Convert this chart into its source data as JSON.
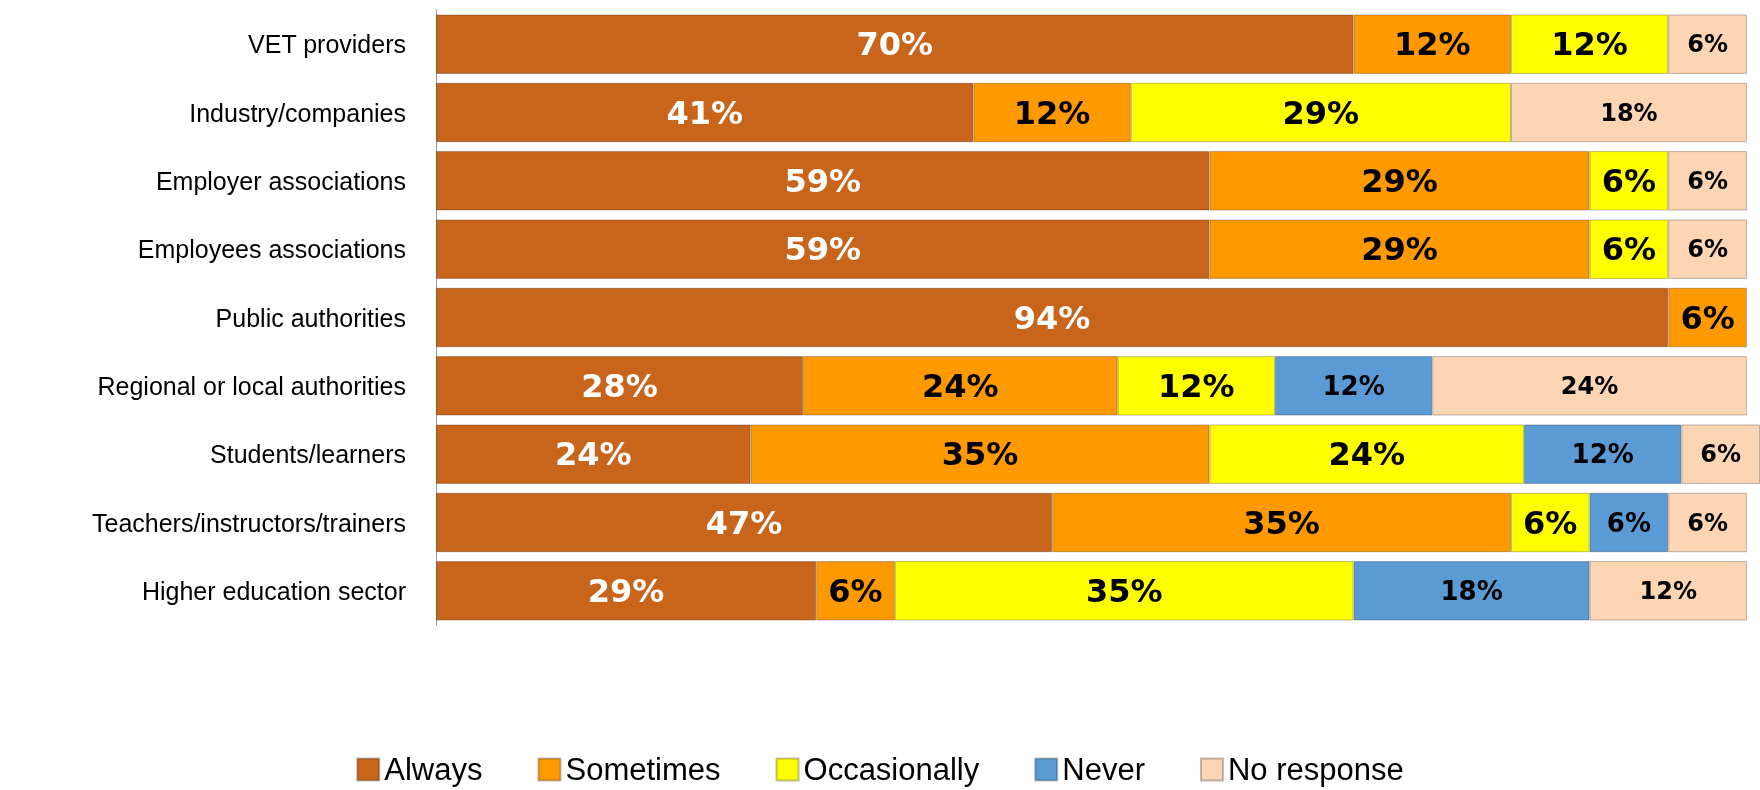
{
  "chart_data": {
    "type": "bar",
    "orientation": "horizontal",
    "stacked": true,
    "tick_labels": "y",
    "xlim": [
      0,
      101
    ],
    "legend": "bottom",
    "grid": false,
    "categories": [
      "VET providers",
      "Industry/companies",
      "Employer associations",
      "Employees associations",
      "Public authorities",
      "Regional or local authorities",
      "Students/learners",
      "Teachers/instructors/trainers",
      "Higher education sector"
    ],
    "series": [
      {
        "name": "Always",
        "color": "#c8651b",
        "values": [
          70,
          41,
          59,
          59,
          94,
          28,
          24,
          47,
          29
        ],
        "value_labels": [
          "70%",
          "41%",
          "59%",
          "59%",
          "94%",
          "28%",
          "24%",
          "47%",
          "29%"
        ]
      },
      {
        "name": "Sometimes",
        "color": "#ff9900",
        "values": [
          12,
          12,
          29,
          29,
          6,
          24,
          35,
          35,
          6
        ],
        "value_labels": [
          "12%",
          "12%",
          "29%",
          "29%",
          "6%",
          "24%",
          "35%",
          "35%",
          "6%"
        ]
      },
      {
        "name": "Occasionally",
        "color": "#ffff00",
        "values": [
          12,
          29,
          6,
          6,
          null,
          12,
          24,
          6,
          35
        ],
        "value_labels": [
          "12%",
          "29%",
          "6%",
          "6%",
          null,
          "12%",
          "24%",
          "6%",
          "35%"
        ]
      },
      {
        "name": "Never",
        "color": "#5b9bd5",
        "values": [
          null,
          null,
          null,
          null,
          null,
          12,
          12,
          6,
          18
        ],
        "value_labels": [
          null,
          null,
          null,
          null,
          null,
          "12%",
          "12%",
          "6%",
          "18%"
        ]
      },
      {
        "name": "No response",
        "color": "#fcd5b4",
        "values": [
          6,
          18,
          6,
          6,
          null,
          24,
          6,
          6,
          12
        ],
        "value_labels": [
          "6%",
          "18%",
          "6%",
          "6%",
          null,
          "24%",
          "6%",
          "6%",
          "12%"
        ]
      }
    ]
  }
}
